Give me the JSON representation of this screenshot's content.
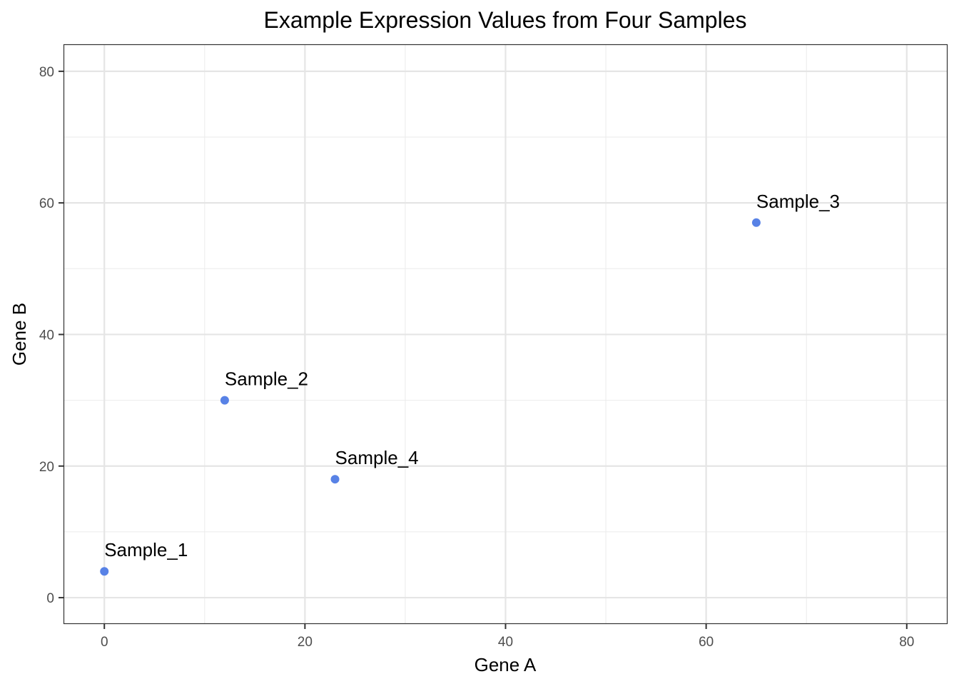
{
  "chart_data": {
    "type": "scatter",
    "title": "Example Expression Values from Four Samples",
    "xlabel": "Gene A",
    "ylabel": "Gene B",
    "xlim": [
      -4,
      84
    ],
    "ylim": [
      -3.9,
      84
    ],
    "x_ticks": [
      0,
      20,
      40,
      60,
      80
    ],
    "y_ticks": [
      0,
      20,
      40,
      60,
      80
    ],
    "x_tick_labels": [
      "0",
      "20",
      "40",
      "60",
      "80"
    ],
    "y_tick_labels": [
      "0",
      "20",
      "40",
      "60",
      "80"
    ],
    "grid": true,
    "point_color": "#5882E6",
    "points": [
      {
        "label": "Sample_1",
        "x": 0,
        "y": 4
      },
      {
        "label": "Sample_2",
        "x": 12,
        "y": 30
      },
      {
        "label": "Sample_3",
        "x": 65,
        "y": 57
      },
      {
        "label": "Sample_4",
        "x": 23,
        "y": 18
      }
    ]
  }
}
